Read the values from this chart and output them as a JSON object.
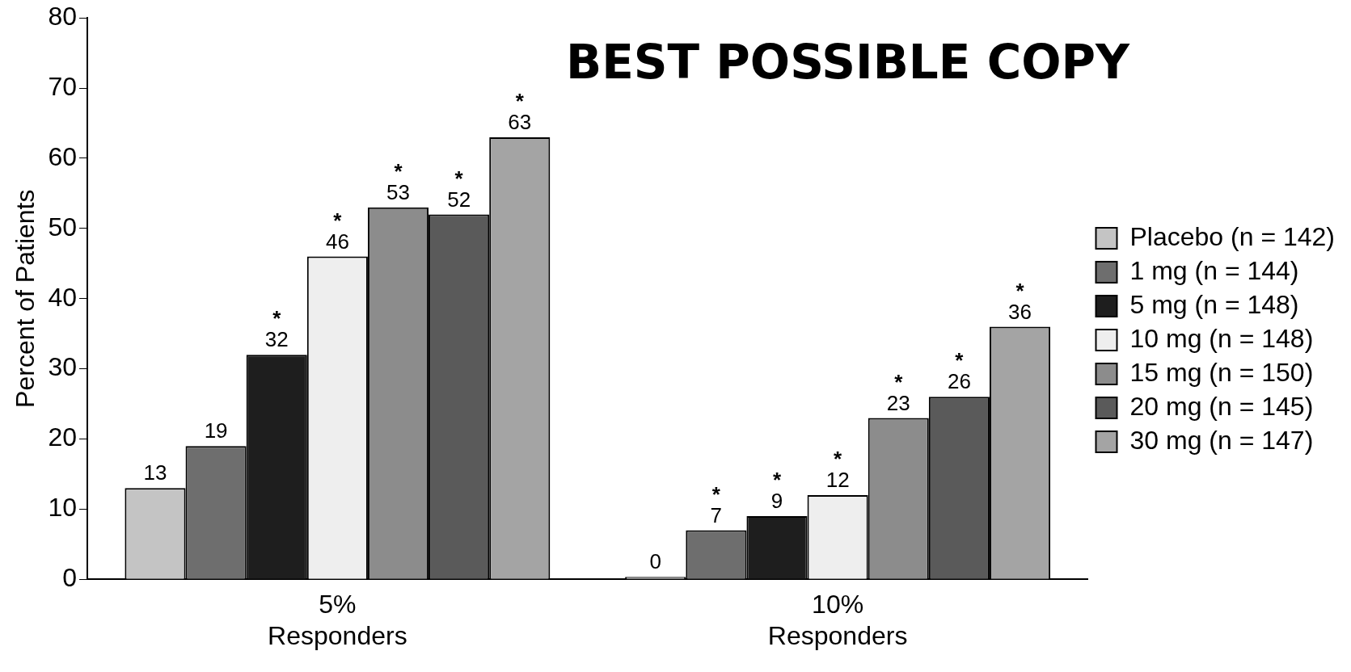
{
  "chart_data": {
    "type": "bar",
    "ylabel": "Percent of Patients",
    "categories": [
      "5%\nResponders",
      "10%\nResponders"
    ],
    "series": [
      {
        "name": "Placebo (n = 142)",
        "color": "#c4c4c4",
        "values": [
          13,
          0
        ]
      },
      {
        "name": "1 mg (n = 144)",
        "color": "#6e6e6e",
        "values": [
          19,
          7
        ]
      },
      {
        "name": "5 mg (n = 148)",
        "color": "#1e1e1e",
        "values": [
          32,
          9
        ]
      },
      {
        "name": "10 mg (n = 148)",
        "color": "#eeeeee",
        "values": [
          46,
          12
        ]
      },
      {
        "name": "15 mg (n = 150)",
        "color": "#8c8c8c",
        "values": [
          53,
          23
        ]
      },
      {
        "name": "20 mg (n = 145)",
        "color": "#5a5a5a",
        "values": [
          52,
          26
        ]
      },
      {
        "name": "30 mg (n = 147)",
        "color": "#a4a4a4",
        "values": [
          63,
          36
        ]
      }
    ],
    "data_labels": true,
    "ylim": [
      0,
      80
    ],
    "yticks": [
      0,
      10,
      20,
      30,
      40,
      50,
      60,
      70,
      80
    ],
    "grid": false,
    "legend": "right",
    "annotations": [
      "BEST POSSIBLE COPY",
      "*",
      "*",
      "*",
      "*",
      "*",
      "*",
      "*",
      "*",
      "*",
      "*",
      "*"
    ]
  }
}
